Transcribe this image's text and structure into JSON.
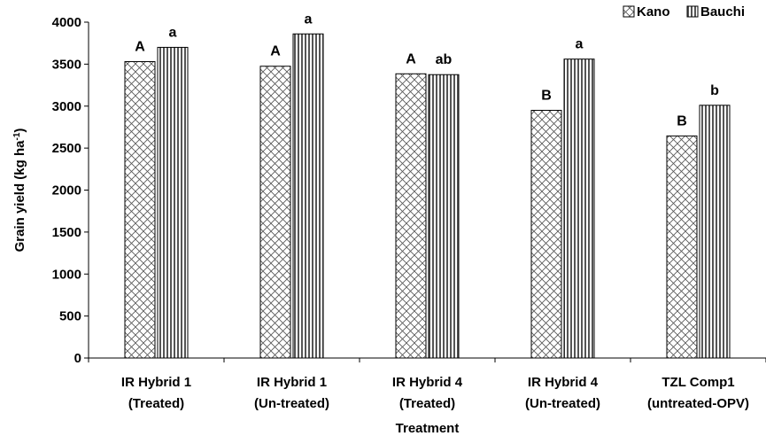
{
  "chart_data": {
    "type": "bar",
    "categories": [
      [
        "IR Hybrid 1",
        "(Treated)"
      ],
      [
        "IR Hybrid 1",
        "(Un-treated)"
      ],
      [
        "IR Hybrid 4",
        "(Treated)"
      ],
      [
        "IR Hybrid 4",
        "(Un-treated)"
      ],
      [
        "TZL Comp1",
        "(untreated-OPV)"
      ]
    ],
    "series": [
      {
        "name": "Kano",
        "values": [
          3530,
          3475,
          3385,
          2950,
          2645
        ],
        "labels": [
          "A",
          "A",
          "A",
          "B",
          "B"
        ],
        "pattern": "crosshatch"
      },
      {
        "name": "Bauchi",
        "values": [
          3700,
          3860,
          3375,
          3560,
          3010
        ],
        "labels": [
          "a",
          "a",
          "ab",
          "a",
          "b"
        ],
        "pattern": "vertical"
      }
    ],
    "xlabel": "Treatment",
    "ylabel": {
      "base": "Grain yield (kg ha",
      "sup": "-1",
      "close": ")"
    },
    "ylim": [
      0,
      4000
    ],
    "yticks": [
      0,
      500,
      1000,
      1500,
      2000,
      2500,
      3000,
      3500,
      4000
    ],
    "legend_position": "top-right",
    "grid": false,
    "colors": {
      "bar_fill": "#ffffff",
      "bar_stroke": "#000000",
      "pattern": "#555555"
    }
  }
}
